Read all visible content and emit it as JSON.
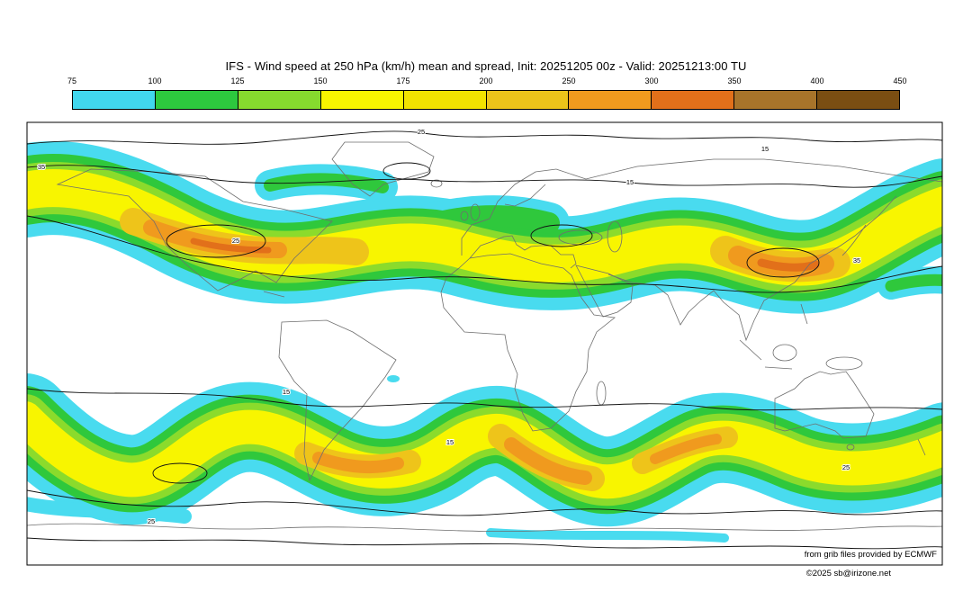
{
  "title": "IFS - Wind speed at 250 hPa (km/h) mean and spread, Init: 20251205 00z - Valid: 20251213:00 TU",
  "colorbar": {
    "tick_labels": [
      "75",
      "100",
      "125",
      "150",
      "175",
      "200",
      "250",
      "300",
      "350",
      "400",
      "450"
    ],
    "segment_colors": [
      "#41d7ee",
      "#2dc83e",
      "#86da2e",
      "#f8f500",
      "#f2e200",
      "#ecc41a",
      "#f09a1e",
      "#e2701a",
      "#a8742a",
      "#7a4e12"
    ]
  },
  "map": {
    "contour_labels": [
      "35",
      "25",
      "15",
      "35",
      "25",
      "15",
      "15",
      "25",
      "15",
      "25"
    ]
  },
  "credits": {
    "line1": "from grib files provided by ECMWF",
    "line2": "©2025 sb@irizone.net"
  },
  "chart_data": {
    "type": "heatmap",
    "title": "IFS - Wind speed at 250 hPa (km/h) mean and spread",
    "model": "IFS",
    "variable": "wind speed at 250 hPa",
    "units": "km/h",
    "init_time": "20251205 00z",
    "valid_time": "20251213:00 TU",
    "fill_levels": [
      75,
      100,
      125,
      150,
      175,
      200,
      250,
      300,
      350,
      400,
      450
    ],
    "fill_colors": [
      "#41d7ee",
      "#2dc83e",
      "#86da2e",
      "#f8f500",
      "#f2e200",
      "#ecc41a",
      "#f09a1e",
      "#e2701a",
      "#a8742a",
      "#7a4e12"
    ],
    "spread_contour_levels_shown": [
      15,
      25,
      35
    ],
    "map_domain": {
      "lon": [
        -180,
        180
      ],
      "lat": [
        -90,
        90
      ]
    },
    "legend_position": "top",
    "grid": false,
    "features": [
      "Northern-hemisphere jet band near 30-55N, maxima about 250-300 km/h over eastern North America / western Atlantic and over East Asia / NW Pacific",
      "Secondary maxima about 200-250 km/h across Europe and the Atlantic",
      "Continuous wavy southern-hemisphere jet near 40-60S with several 250-300 km/h cores",
      "Thin black contours show ensemble spread, labeled 15, 25 and 35",
      "Tropics and polar caps mostly below 75 km/h (white)"
    ]
  }
}
